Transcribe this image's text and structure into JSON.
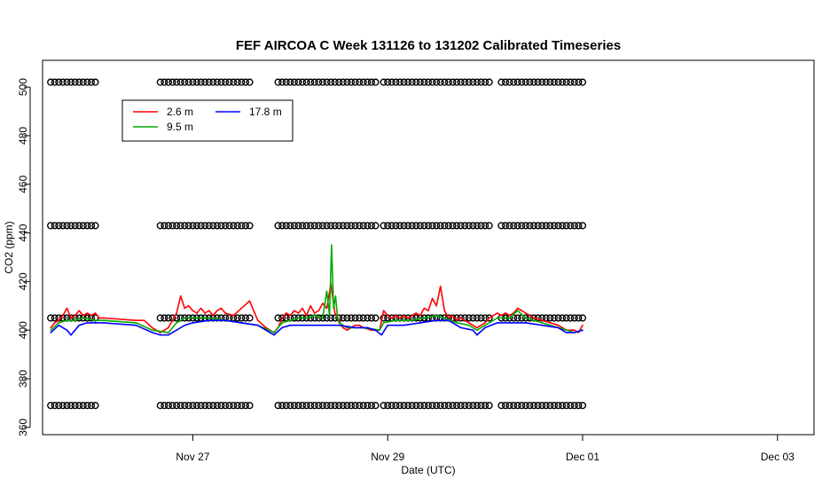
{
  "chart_data": {
    "type": "line",
    "title": "FEF AIRCOA C  Week 131126 to 131202  Calibrated Timeseries",
    "xlabel": "Date (UTC)",
    "ylabel": "CO2 (ppm)",
    "x_unit": "date (UTC)",
    "xlim": [
      "2013-11-25T11:00",
      "2013-12-03T09:00"
    ],
    "ylim": [
      357,
      511
    ],
    "x_ticks": [
      {
        "date": "2013-11-27T00:00",
        "label": "Nov 27"
      },
      {
        "date": "2013-11-29T00:00",
        "label": "Nov 29"
      },
      {
        "date": "2013-12-01T00:00",
        "label": "Dec 01"
      },
      {
        "date": "2013-12-03T00:00",
        "label": "Dec 03"
      }
    ],
    "y_ticks": [
      360,
      380,
      400,
      420,
      440,
      460,
      480,
      500
    ],
    "grid": false,
    "legend_position": "top-left",
    "series": [
      {
        "name": "2.6 m",
        "color": "#ff0000",
        "points": [
          [
            "2013-11-25T13:00",
            401
          ],
          [
            "2013-11-25T14:00",
            403
          ],
          [
            "2013-11-25T15:00",
            404
          ],
          [
            "2013-11-25T16:00",
            406
          ],
          [
            "2013-11-25T17:00",
            409
          ],
          [
            "2013-11-25T18:00",
            405
          ],
          [
            "2013-11-25T19:00",
            406
          ],
          [
            "2013-11-25T20:00",
            408
          ],
          [
            "2013-11-25T21:00",
            406
          ],
          [
            "2013-11-25T22:00",
            407
          ],
          [
            "2013-11-25T23:00",
            406
          ],
          [
            "2013-11-26T00:00",
            407
          ],
          [
            "2013-11-26T01:00",
            405
          ],
          [
            "2013-11-26T02:00",
            405
          ],
          [
            "2013-11-26T10:00",
            404
          ],
          [
            "2013-11-26T12:00",
            404
          ],
          [
            "2013-11-26T14:00",
            401
          ],
          [
            "2013-11-26T16:00",
            399
          ],
          [
            "2013-11-26T18:00",
            401
          ],
          [
            "2013-11-26T19:00",
            404
          ],
          [
            "2013-11-26T20:00",
            407
          ],
          [
            "2013-11-26T21:00",
            414
          ],
          [
            "2013-11-26T22:00",
            409
          ],
          [
            "2013-11-26T23:00",
            410
          ],
          [
            "2013-11-27T00:00",
            408
          ],
          [
            "2013-11-27T01:00",
            407
          ],
          [
            "2013-11-27T02:00",
            409
          ],
          [
            "2013-11-27T03:00",
            407
          ],
          [
            "2013-11-27T04:00",
            408
          ],
          [
            "2013-11-27T05:00",
            406
          ],
          [
            "2013-11-27T06:00",
            408
          ],
          [
            "2013-11-27T07:00",
            409
          ],
          [
            "2013-11-27T08:00",
            407
          ],
          [
            "2013-11-27T10:00",
            406
          ],
          [
            "2013-11-27T14:00",
            412
          ],
          [
            "2013-11-27T16:00",
            404
          ],
          [
            "2013-11-27T18:00",
            401
          ],
          [
            "2013-11-27T20:00",
            399
          ],
          [
            "2013-11-27T21:00",
            401
          ],
          [
            "2013-11-27T22:00",
            405
          ],
          [
            "2013-11-27T23:00",
            407
          ],
          [
            "2013-11-28T00:00",
            406
          ],
          [
            "2013-11-28T01:00",
            408
          ],
          [
            "2013-11-28T02:00",
            407
          ],
          [
            "2013-11-28T03:00",
            409
          ],
          [
            "2013-11-28T04:00",
            406
          ],
          [
            "2013-11-28T05:00",
            410
          ],
          [
            "2013-11-28T06:00",
            407
          ],
          [
            "2013-11-28T07:00",
            408
          ],
          [
            "2013-11-28T08:00",
            411
          ],
          [
            "2013-11-28T09:00",
            409
          ],
          [
            "2013-11-28T10:00",
            419
          ],
          [
            "2013-11-28T11:00",
            407
          ],
          [
            "2013-11-28T12:00",
            404
          ],
          [
            "2013-11-28T13:00",
            401
          ],
          [
            "2013-11-28T14:00",
            400
          ],
          [
            "2013-11-28T15:00",
            401
          ],
          [
            "2013-11-28T16:00",
            402
          ],
          [
            "2013-11-28T17:00",
            402
          ],
          [
            "2013-11-28T18:00",
            401
          ],
          [
            "2013-11-28T20:00",
            400
          ],
          [
            "2013-11-28T22:00",
            400
          ],
          [
            "2013-11-28T23:00",
            408
          ],
          [
            "2013-11-29T00:00",
            406
          ],
          [
            "2013-11-29T01:00",
            405
          ],
          [
            "2013-11-29T02:00",
            406
          ],
          [
            "2013-11-29T03:00",
            405
          ],
          [
            "2013-11-29T04:00",
            406
          ],
          [
            "2013-11-29T05:00",
            405
          ],
          [
            "2013-11-29T06:00",
            406
          ],
          [
            "2013-11-29T07:00",
            407
          ],
          [
            "2013-11-29T08:00",
            406
          ],
          [
            "2013-11-29T09:00",
            409
          ],
          [
            "2013-11-29T10:00",
            408
          ],
          [
            "2013-11-29T11:00",
            413
          ],
          [
            "2013-11-29T12:00",
            410
          ],
          [
            "2013-11-29T13:00",
            418
          ],
          [
            "2013-11-29T14:00",
            408
          ],
          [
            "2013-11-29T15:00",
            405
          ],
          [
            "2013-11-29T16:00",
            406
          ],
          [
            "2013-11-29T17:00",
            404
          ],
          [
            "2013-11-29T18:00",
            405
          ],
          [
            "2013-11-29T19:00",
            404
          ],
          [
            "2013-11-29T20:00",
            403
          ],
          [
            "2013-11-29T22:00",
            401
          ],
          [
            "2013-11-30T00:00",
            403
          ],
          [
            "2013-11-30T01:00",
            405
          ],
          [
            "2013-11-30T02:00",
            406
          ],
          [
            "2013-11-30T03:00",
            407
          ],
          [
            "2013-11-30T04:00",
            406
          ],
          [
            "2013-11-30T05:00",
            407
          ],
          [
            "2013-11-30T06:00",
            406
          ],
          [
            "2013-11-30T07:00",
            407
          ],
          [
            "2013-11-30T08:00",
            409
          ],
          [
            "2013-11-30T09:00",
            408
          ],
          [
            "2013-11-30T10:00",
            407
          ],
          [
            "2013-11-30T11:00",
            406
          ],
          [
            "2013-11-30T12:00",
            405
          ],
          [
            "2013-11-30T14:00",
            404
          ],
          [
            "2013-11-30T16:00",
            403
          ],
          [
            "2013-11-30T18:00",
            402
          ],
          [
            "2013-11-30T19:00",
            401
          ],
          [
            "2013-11-30T20:00",
            400
          ],
          [
            "2013-11-30T22:00",
            400
          ],
          [
            "2013-11-30T23:00",
            399
          ],
          [
            "2013-12-01T00:00",
            402
          ]
        ]
      },
      {
        "name": "9.5 m",
        "color": "#00aa00",
        "points": [
          [
            "2013-11-25T13:00",
            400
          ],
          [
            "2013-11-25T15:00",
            403
          ],
          [
            "2013-11-25T17:00",
            404
          ],
          [
            "2013-11-25T19:00",
            404
          ],
          [
            "2013-11-25T21:00",
            405
          ],
          [
            "2013-11-26T00:00",
            404
          ],
          [
            "2013-11-26T02:00",
            404
          ],
          [
            "2013-11-26T10:00",
            403
          ],
          [
            "2013-11-26T14:00",
            400
          ],
          [
            "2013-11-26T18:00",
            399
          ],
          [
            "2013-11-26T20:00",
            403
          ],
          [
            "2013-11-26T22:00",
            405
          ],
          [
            "2013-11-27T00:00",
            405
          ],
          [
            "2013-11-27T04:00",
            405
          ],
          [
            "2013-11-27T08:00",
            404
          ],
          [
            "2013-11-27T12:00",
            403
          ],
          [
            "2013-11-27T16:00",
            402
          ],
          [
            "2013-11-27T20:00",
            399
          ],
          [
            "2013-11-27T22:00",
            403
          ],
          [
            "2013-11-28T00:00",
            404
          ],
          [
            "2013-11-28T02:00",
            405
          ],
          [
            "2013-11-28T04:00",
            405
          ],
          [
            "2013-11-28T06:00",
            406
          ],
          [
            "2013-11-28T08:00",
            405
          ],
          [
            "2013-11-28T09:00",
            416
          ],
          [
            "2013-11-28T09:40",
            406
          ],
          [
            "2013-11-28T10:10",
            435
          ],
          [
            "2013-11-28T10:40",
            409
          ],
          [
            "2013-11-28T11:10",
            414
          ],
          [
            "2013-11-28T11:40",
            405
          ],
          [
            "2013-11-28T12:00",
            403
          ],
          [
            "2013-11-28T14:00",
            401
          ],
          [
            "2013-11-28T18:00",
            401
          ],
          [
            "2013-11-28T22:00",
            400
          ],
          [
            "2013-11-28T23:00",
            403
          ],
          [
            "2013-11-29T02:00",
            404
          ],
          [
            "2013-11-29T06:00",
            404
          ],
          [
            "2013-11-29T09:00",
            405
          ],
          [
            "2013-11-29T12:00",
            406
          ],
          [
            "2013-11-29T14:00",
            405
          ],
          [
            "2013-11-29T17:00",
            403
          ],
          [
            "2013-11-29T20:00",
            402
          ],
          [
            "2013-11-29T22:00",
            400
          ],
          [
            "2013-11-30T00:00",
            402
          ],
          [
            "2013-11-30T03:00",
            405
          ],
          [
            "2013-11-30T06:00",
            405
          ],
          [
            "2013-11-30T08:00",
            408
          ],
          [
            "2013-11-30T10:00",
            405
          ],
          [
            "2013-11-30T14:00",
            403
          ],
          [
            "2013-11-30T18:00",
            401
          ],
          [
            "2013-11-30T22:00",
            399
          ],
          [
            "2013-12-01T00:00",
            400
          ]
        ]
      },
      {
        "name": "17.8 m",
        "color": "#0000ff",
        "points": [
          [
            "2013-11-25T13:00",
            399
          ],
          [
            "2013-11-25T15:00",
            402
          ],
          [
            "2013-11-25T17:00",
            400
          ],
          [
            "2013-11-25T18:00",
            398
          ],
          [
            "2013-11-25T20:00",
            402
          ],
          [
            "2013-11-25T22:00",
            403
          ],
          [
            "2013-11-26T00:00",
            403
          ],
          [
            "2013-11-26T02:00",
            403
          ],
          [
            "2013-11-26T10:00",
            402
          ],
          [
            "2013-11-26T14:00",
            399
          ],
          [
            "2013-11-26T16:00",
            398
          ],
          [
            "2013-11-26T18:00",
            398
          ],
          [
            "2013-11-26T20:00",
            400
          ],
          [
            "2013-11-26T22:00",
            402
          ],
          [
            "2013-11-27T00:00",
            403
          ],
          [
            "2013-11-27T04:00",
            404
          ],
          [
            "2013-11-27T08:00",
            404
          ],
          [
            "2013-11-27T12:00",
            403
          ],
          [
            "2013-11-27T16:00",
            402
          ],
          [
            "2013-11-27T19:00",
            399
          ],
          [
            "2013-11-27T20:00",
            398
          ],
          [
            "2013-11-27T22:00",
            401
          ],
          [
            "2013-11-28T00:00",
            402
          ],
          [
            "2013-11-28T04:00",
            402
          ],
          [
            "2013-11-28T08:00",
            402
          ],
          [
            "2013-11-28T12:00",
            402
          ],
          [
            "2013-11-28T16:00",
            401
          ],
          [
            "2013-11-28T19:00",
            401
          ],
          [
            "2013-11-28T21:00",
            400
          ],
          [
            "2013-11-28T22:30",
            398
          ],
          [
            "2013-11-29T00:00",
            402
          ],
          [
            "2013-11-29T04:00",
            402
          ],
          [
            "2013-11-29T08:00",
            403
          ],
          [
            "2013-11-29T12:00",
            404
          ],
          [
            "2013-11-29T15:00",
            404
          ],
          [
            "2013-11-29T18:00",
            401
          ],
          [
            "2013-11-29T21:00",
            400
          ],
          [
            "2013-11-29T22:00",
            398
          ],
          [
            "2013-11-30T00:00",
            401
          ],
          [
            "2013-11-30T03:00",
            403
          ],
          [
            "2013-11-30T06:00",
            403
          ],
          [
            "2013-11-30T10:00",
            403
          ],
          [
            "2013-11-30T14:00",
            402
          ],
          [
            "2013-11-30T18:00",
            401
          ],
          [
            "2013-11-30T20:00",
            399
          ],
          [
            "2013-11-30T22:00",
            399
          ],
          [
            "2013-12-01T00:00",
            400
          ]
        ]
      }
    ],
    "cal_marker_levels": [
      369,
      405,
      443,
      502
    ],
    "cal_marker_spans": [
      [
        "2013-11-25T13:00",
        "2013-11-26T00:00"
      ],
      [
        "2013-11-26T16:00",
        "2013-11-27T14:00"
      ],
      [
        "2013-11-27T21:00",
        "2013-11-28T21:00"
      ],
      [
        "2013-11-28T23:00",
        "2013-11-30T01:00"
      ],
      [
        "2013-11-30T04:00",
        "2013-12-01T00:00"
      ]
    ],
    "legend": [
      {
        "label": "2.6 m",
        "color": "#ff0000"
      },
      {
        "label": "9.5 m",
        "color": "#00aa00"
      },
      {
        "label": "17.8 m",
        "color": "#0000ff"
      }
    ]
  }
}
